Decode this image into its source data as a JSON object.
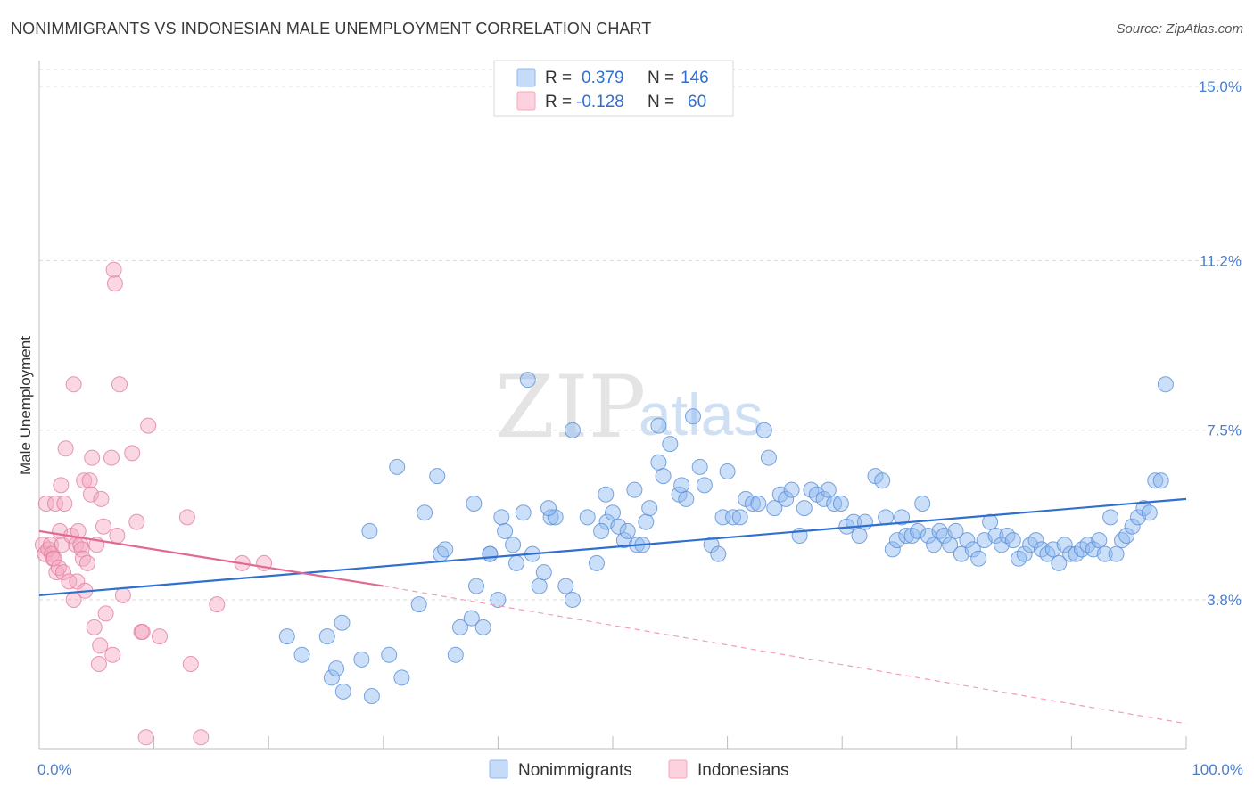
{
  "header": {
    "title": "NONIMMIGRANTS VS INDONESIAN MALE UNEMPLOYMENT CORRELATION CHART",
    "source": "Source: ZipAtlas.com"
  },
  "watermark": {
    "zip": "ZIP",
    "atlas": "atlas"
  },
  "legend": {
    "rows": [
      {
        "r_label": "R =",
        "r_value": "0.379",
        "n_label": "N =",
        "n_value": "146",
        "color": "#8fb8ef"
      },
      {
        "r_label": "R =",
        "r_value": "-0.128",
        "n_label": "N =",
        "n_value": "60",
        "color": "#f4a7bf"
      }
    ]
  },
  "chart_data": {
    "type": "scatter",
    "title": "NONIMMIGRANTS VS INDONESIAN MALE UNEMPLOYMENT CORRELATION CHART",
    "xlabel": "",
    "ylabel": "Male Unemployment",
    "xlim": [
      0,
      100
    ],
    "ylim": [
      0,
      15.7
    ],
    "x_tick_labels": [
      "0.0%",
      "100.0%"
    ],
    "y_ticks": [
      {
        "value": 3.8,
        "label": "3.8%"
      },
      {
        "value": 7.5,
        "label": "7.5%"
      },
      {
        "value": 11.2,
        "label": "11.2%"
      },
      {
        "value": 15.0,
        "label": "15.0%"
      }
    ],
    "grid": true,
    "legend_position": "top-center",
    "series": [
      {
        "name": "Nonimmigrants",
        "color": "#8fb8ef",
        "stroke": "#5a8fd8",
        "trend": {
          "x": [
            0,
            100
          ],
          "y": [
            3.9,
            6.0
          ],
          "color": "#2f6fd0"
        },
        "points": [
          [
            21.6,
            3.0
          ],
          [
            22.9,
            2.6
          ],
          [
            25.1,
            3.0
          ],
          [
            25.5,
            2.1
          ],
          [
            25.9,
            2.3
          ],
          [
            26.4,
            3.3
          ],
          [
            26.5,
            1.8
          ],
          [
            28.1,
            2.5
          ],
          [
            29.0,
            1.7
          ],
          [
            28.8,
            5.3
          ],
          [
            30.5,
            2.6
          ],
          [
            31.2,
            6.7
          ],
          [
            31.6,
            2.1
          ],
          [
            33.1,
            3.7
          ],
          [
            33.6,
            5.7
          ],
          [
            34.7,
            6.5
          ],
          [
            35.0,
            4.8
          ],
          [
            35.4,
            4.9
          ],
          [
            36.3,
            2.6
          ],
          [
            36.7,
            3.2
          ],
          [
            37.7,
            3.4
          ],
          [
            37.9,
            5.9
          ],
          [
            38.1,
            4.1
          ],
          [
            38.7,
            3.2
          ],
          [
            39.3,
            4.8
          ],
          [
            39.3,
            4.8
          ],
          [
            40.0,
            3.8
          ],
          [
            40.3,
            5.6
          ],
          [
            40.6,
            5.3
          ],
          [
            41.3,
            5.0
          ],
          [
            41.6,
            4.6
          ],
          [
            42.2,
            5.7
          ],
          [
            42.6,
            8.6
          ],
          [
            43.0,
            4.8
          ],
          [
            43.6,
            4.1
          ],
          [
            44.0,
            4.4
          ],
          [
            44.6,
            5.6
          ],
          [
            45.0,
            5.6
          ],
          [
            45.9,
            4.1
          ],
          [
            46.5,
            3.8
          ],
          [
            46.5,
            7.5
          ],
          [
            47.8,
            5.6
          ],
          [
            48.6,
            4.6
          ],
          [
            49.4,
            6.1
          ],
          [
            49.5,
            5.5
          ],
          [
            50.0,
            5.7
          ],
          [
            50.5,
            5.4
          ],
          [
            51.0,
            5.1
          ],
          [
            51.3,
            5.3
          ],
          [
            51.9,
            6.2
          ],
          [
            52.1,
            5.0
          ],
          [
            52.9,
            5.5
          ],
          [
            53.2,
            5.8
          ],
          [
            54.0,
            7.6
          ],
          [
            54.0,
            6.8
          ],
          [
            54.4,
            6.5
          ],
          [
            55.0,
            7.2
          ],
          [
            55.8,
            6.1
          ],
          [
            56.0,
            6.3
          ],
          [
            56.4,
            6.0
          ],
          [
            57.0,
            7.8
          ],
          [
            57.6,
            6.7
          ],
          [
            58.0,
            6.3
          ],
          [
            58.6,
            5.0
          ],
          [
            59.2,
            4.8
          ],
          [
            59.6,
            5.6
          ],
          [
            60.0,
            6.6
          ],
          [
            60.5,
            5.6
          ],
          [
            61.1,
            5.6
          ],
          [
            61.6,
            6.0
          ],
          [
            62.2,
            5.9
          ],
          [
            62.7,
            5.9
          ],
          [
            63.2,
            7.5
          ],
          [
            63.6,
            6.9
          ],
          [
            64.1,
            5.8
          ],
          [
            64.6,
            6.1
          ],
          [
            65.1,
            6.0
          ],
          [
            65.6,
            6.2
          ],
          [
            66.3,
            5.2
          ],
          [
            66.7,
            5.8
          ],
          [
            67.3,
            6.2
          ],
          [
            67.8,
            6.1
          ],
          [
            68.4,
            6.0
          ],
          [
            68.8,
            6.2
          ],
          [
            69.3,
            5.9
          ],
          [
            69.9,
            5.9
          ],
          [
            70.4,
            5.4
          ],
          [
            71.0,
            5.5
          ],
          [
            71.5,
            5.2
          ],
          [
            72.0,
            5.5
          ],
          [
            72.9,
            6.5
          ],
          [
            73.5,
            6.4
          ],
          [
            73.8,
            5.6
          ],
          [
            74.4,
            4.9
          ],
          [
            74.8,
            5.1
          ],
          [
            75.2,
            5.6
          ],
          [
            75.6,
            5.2
          ],
          [
            76.1,
            5.2
          ],
          [
            76.6,
            5.3
          ],
          [
            77.0,
            5.9
          ],
          [
            77.5,
            5.2
          ],
          [
            78.0,
            5.0
          ],
          [
            78.5,
            5.3
          ],
          [
            78.9,
            5.2
          ],
          [
            79.4,
            5.0
          ],
          [
            79.9,
            5.3
          ],
          [
            80.4,
            4.8
          ],
          [
            80.9,
            5.1
          ],
          [
            81.4,
            4.9
          ],
          [
            81.9,
            4.7
          ],
          [
            82.4,
            5.1
          ],
          [
            82.9,
            5.5
          ],
          [
            83.4,
            5.2
          ],
          [
            83.9,
            5.0
          ],
          [
            84.4,
            5.2
          ],
          [
            84.9,
            5.1
          ],
          [
            85.4,
            4.7
          ],
          [
            85.9,
            4.8
          ],
          [
            86.4,
            5.0
          ],
          [
            86.9,
            5.1
          ],
          [
            87.4,
            4.9
          ],
          [
            87.9,
            4.8
          ],
          [
            88.4,
            4.9
          ],
          [
            88.9,
            4.6
          ],
          [
            89.4,
            5.0
          ],
          [
            89.9,
            4.8
          ],
          [
            90.4,
            4.8
          ],
          [
            90.9,
            4.9
          ],
          [
            91.4,
            5.0
          ],
          [
            91.9,
            4.9
          ],
          [
            92.4,
            5.1
          ],
          [
            92.9,
            4.8
          ],
          [
            93.4,
            5.6
          ],
          [
            93.9,
            4.8
          ],
          [
            94.4,
            5.1
          ],
          [
            94.8,
            5.2
          ],
          [
            95.3,
            5.4
          ],
          [
            95.8,
            5.6
          ],
          [
            96.3,
            5.8
          ],
          [
            96.8,
            5.7
          ],
          [
            97.3,
            6.4
          ],
          [
            97.8,
            6.4
          ],
          [
            98.2,
            8.5
          ],
          [
            49.0,
            5.3
          ],
          [
            52.6,
            5.0
          ],
          [
            44.4,
            5.8
          ]
        ]
      },
      {
        "name": "Indonesians",
        "color": "#f4a7bf",
        "stroke": "#e07fa0",
        "trend": {
          "x": [
            0,
            30
          ],
          "y": [
            5.3,
            4.1
          ],
          "color": "#e06a92"
        },
        "trend_dashed": {
          "x": [
            30,
            100
          ],
          "y": [
            4.1,
            1.1
          ]
        },
        "points": [
          [
            0.3,
            5.0
          ],
          [
            0.5,
            4.8
          ],
          [
            0.6,
            5.9
          ],
          [
            0.8,
            4.9
          ],
          [
            1.0,
            5.0
          ],
          [
            1.1,
            4.8
          ],
          [
            1.2,
            4.7
          ],
          [
            1.3,
            4.7
          ],
          [
            1.4,
            5.9
          ],
          [
            1.5,
            4.4
          ],
          [
            1.7,
            4.5
          ],
          [
            1.8,
            5.3
          ],
          [
            1.9,
            6.3
          ],
          [
            2.0,
            5.0
          ],
          [
            2.1,
            4.4
          ],
          [
            2.2,
            5.9
          ],
          [
            2.3,
            7.1
          ],
          [
            2.6,
            4.2
          ],
          [
            2.8,
            5.2
          ],
          [
            3.0,
            3.8
          ],
          [
            3.0,
            8.5
          ],
          [
            3.2,
            5.0
          ],
          [
            3.3,
            4.2
          ],
          [
            3.4,
            5.3
          ],
          [
            3.6,
            5.0
          ],
          [
            3.7,
            4.9
          ],
          [
            3.8,
            4.7
          ],
          [
            3.9,
            6.4
          ],
          [
            4.0,
            4.0
          ],
          [
            4.2,
            4.6
          ],
          [
            4.4,
            6.4
          ],
          [
            4.5,
            6.1
          ],
          [
            4.6,
            6.9
          ],
          [
            4.8,
            3.2
          ],
          [
            5.0,
            5.0
          ],
          [
            5.2,
            2.4
          ],
          [
            5.3,
            2.8
          ],
          [
            5.4,
            6.0
          ],
          [
            5.6,
            5.4
          ],
          [
            5.8,
            3.5
          ],
          [
            6.3,
            6.9
          ],
          [
            6.4,
            2.6
          ],
          [
            6.5,
            11.0
          ],
          [
            6.6,
            10.7
          ],
          [
            6.8,
            5.2
          ],
          [
            7.0,
            8.5
          ],
          [
            7.3,
            3.9
          ],
          [
            8.1,
            7.0
          ],
          [
            8.5,
            5.5
          ],
          [
            8.9,
            3.1
          ],
          [
            9.0,
            3.1
          ],
          [
            9.5,
            7.6
          ],
          [
            10.5,
            3.0
          ],
          [
            12.9,
            5.6
          ],
          [
            13.2,
            2.4
          ],
          [
            15.5,
            3.7
          ],
          [
            17.7,
            4.6
          ],
          [
            19.6,
            4.6
          ],
          [
            14.1,
            0.8
          ],
          [
            9.3,
            0.8
          ]
        ]
      }
    ]
  },
  "bottom_legend": {
    "items": [
      {
        "label": "Nonimmigrants",
        "color": "#8fb8ef"
      },
      {
        "label": "Indonesians",
        "color": "#f4a7bf"
      }
    ]
  }
}
